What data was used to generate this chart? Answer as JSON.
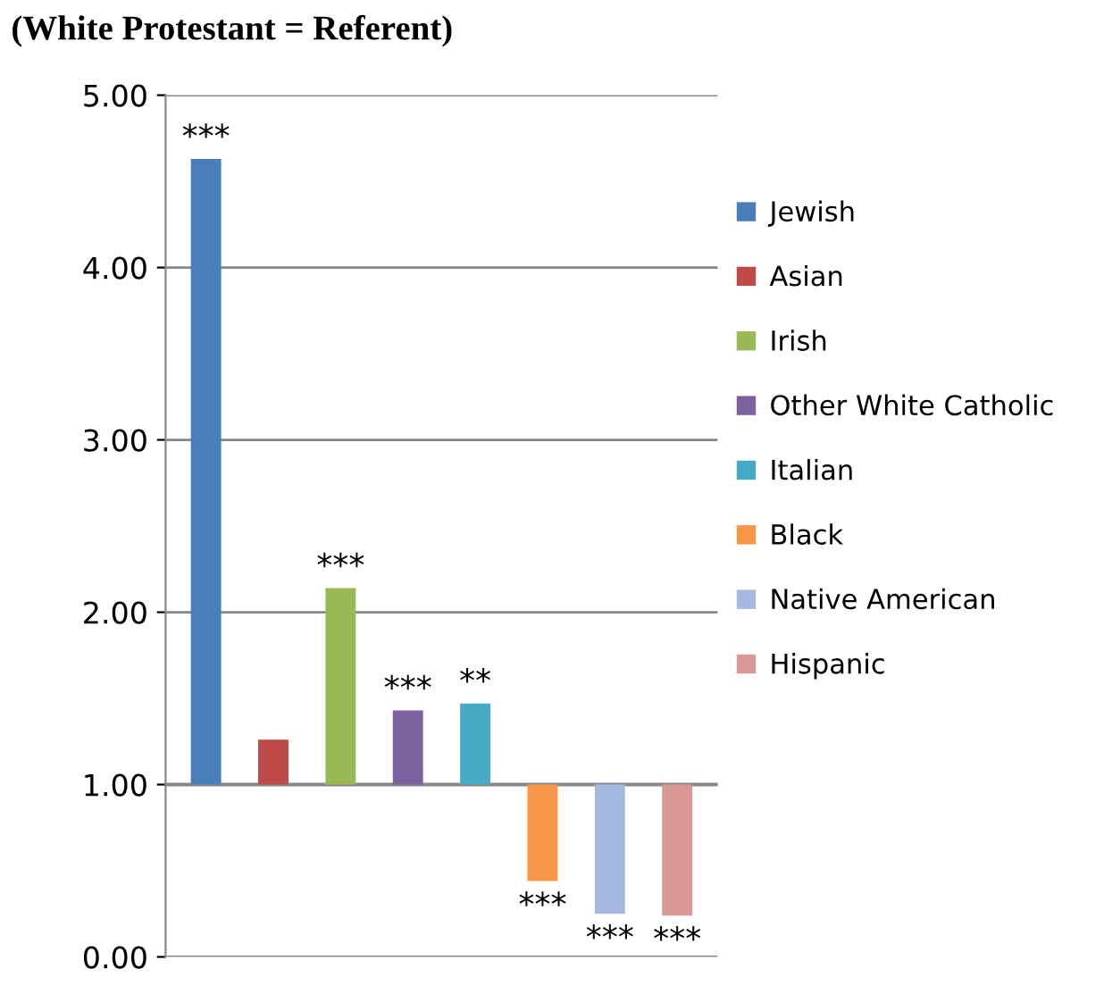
{
  "chart_data": {
    "type": "bar",
    "title": "(White Protestant = Referent)",
    "categories": [
      null,
      null,
      null,
      null,
      null,
      null,
      null,
      null
    ],
    "series": [
      {
        "name": "Jewish",
        "color": "#4a7ebb",
        "base": [
          1,
          null,
          null,
          null,
          null,
          null,
          null,
          null
        ],
        "values": [
          3.63,
          null,
          null,
          null,
          null,
          null,
          null,
          null
        ],
        "value_labels": [
          "***",
          null,
          null,
          null,
          null,
          null,
          null,
          null
        ]
      },
      {
        "name": "Asian",
        "color": "#be4b48",
        "base": [
          null,
          1,
          null,
          null,
          null,
          null,
          null,
          null
        ],
        "values": [
          null,
          0.26,
          null,
          null,
          null,
          null,
          null,
          null
        ]
      },
      {
        "name": "Irish",
        "color": "#98b954",
        "base": [
          null,
          null,
          1,
          null,
          null,
          null,
          null,
          null
        ],
        "values": [
          null,
          null,
          1.14,
          null,
          null,
          null,
          null,
          null
        ],
        "value_labels": [
          null,
          null,
          "***",
          null,
          null,
          null,
          null,
          null
        ]
      },
      {
        "name": "Other White Catholic",
        "color": "#7d60a0",
        "base": [
          null,
          null,
          null,
          1,
          null,
          null,
          null,
          null
        ],
        "values": [
          null,
          null,
          null,
          0.43,
          null,
          null,
          null,
          null
        ],
        "value_labels": [
          null,
          null,
          null,
          "***",
          null,
          null,
          null,
          null
        ]
      },
      {
        "name": "Italian",
        "color": "#46aac5",
        "base": [
          null,
          null,
          null,
          null,
          1,
          null,
          null,
          null
        ],
        "values": [
          null,
          null,
          null,
          null,
          0.47,
          null,
          null,
          null
        ],
        "value_labels": [
          null,
          null,
          null,
          null,
          "**",
          null,
          null,
          null
        ]
      },
      {
        "name": "Black",
        "color": "#f79646",
        "base": [
          null,
          null,
          null,
          null,
          null,
          1,
          null,
          null
        ],
        "values": [
          null,
          null,
          null,
          null,
          null,
          -0.56,
          null,
          null
        ],
        "value_labels": [
          null,
          null,
          null,
          null,
          null,
          "***",
          null,
          null
        ]
      },
      {
        "name": "Native American",
        "color": "#a5b9e0",
        "base": [
          null,
          null,
          null,
          null,
          null,
          null,
          1,
          null
        ],
        "values": [
          null,
          null,
          null,
          null,
          null,
          null,
          -0.75,
          null
        ],
        "value_labels": [
          null,
          null,
          null,
          null,
          null,
          null,
          "***",
          null
        ]
      },
      {
        "name": "Hispanic",
        "color": "#d99795",
        "base": [
          null,
          null,
          null,
          null,
          null,
          null,
          null,
          1
        ],
        "values": [
          null,
          null,
          null,
          null,
          null,
          null,
          null,
          -0.76
        ],
        "value_labels": [
          null,
          null,
          null,
          null,
          null,
          null,
          null,
          "***"
        ]
      }
    ],
    "ylim": [
      0,
      5
    ],
    "yticks": [
      {
        "value": 0,
        "label": "0.00"
      },
      {
        "value": 1,
        "label": "1.00"
      },
      {
        "value": 2,
        "label": "2.00"
      },
      {
        "value": 3,
        "label": "3.00"
      },
      {
        "value": 4,
        "label": "4.00"
      },
      {
        "value": 5,
        "label": "5.00"
      }
    ],
    "ref_lines": [
      {
        "axis": "y",
        "value": 1,
        "color": "#888888"
      }
    ],
    "grid": "y",
    "legend": "right",
    "tick_labels": "y"
  }
}
